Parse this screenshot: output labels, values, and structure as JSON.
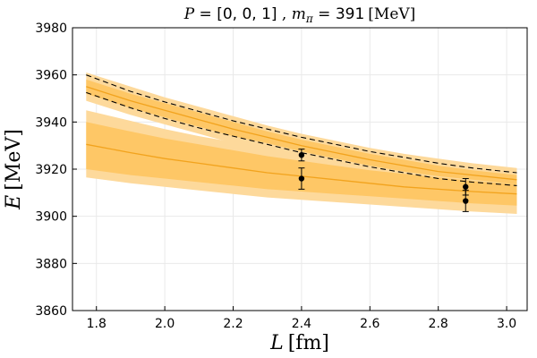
{
  "chart_data": {
    "type": "line",
    "title": {
      "p_symbol": "P",
      "eq": " = ",
      "p_value": "[0, 0, 1]",
      "sep": " , ",
      "m_symbol": "m",
      "m_sub": "π",
      "m_eq": " = ",
      "m_value": "391",
      "m_unit": "[MeV]"
    },
    "xlabel": {
      "symbol": "L",
      "unit": "[fm]"
    },
    "ylabel": {
      "symbol": "E",
      "unit": "[MeV]"
    },
    "xlim": [
      1.73,
      3.06
    ],
    "ylim": [
      3860,
      3980
    ],
    "xticks": [
      1.8,
      2.0,
      2.2,
      2.4,
      2.6,
      2.8,
      3.0
    ],
    "xtick_labels": [
      "1.8",
      "2.0",
      "2.2",
      "2.4",
      "2.6",
      "2.8",
      "3.0"
    ],
    "yticks": [
      3860,
      3880,
      3900,
      3920,
      3940,
      3960,
      3980
    ],
    "ytick_labels": [
      "3860",
      "3880",
      "3900",
      "3920",
      "3940",
      "3960",
      "3980"
    ],
    "grid": true,
    "colors": {
      "band_outer": "#fdd99b",
      "band_inner": "#fec766",
      "center_line": "#f2a31d",
      "dashed": "#000000",
      "points": "#000000"
    },
    "x": [
      1.77,
      1.9,
      2.0,
      2.1,
      2.2,
      2.3,
      2.4,
      2.5,
      2.6,
      2.7,
      2.8,
      2.9,
      3.03
    ],
    "series": [
      {
        "name": "upper level band",
        "center": [
          3955.0,
          3949.0,
          3945.0,
          3941.0,
          3937.0,
          3933.5,
          3930.0,
          3927.0,
          3924.0,
          3921.5,
          3919.0,
          3917.5,
          3915.5
        ],
        "inner_low": [
          3952.0,
          3946.0,
          3942.0,
          3938.0,
          3934.0,
          3931.0,
          3927.5,
          3924.5,
          3921.5,
          3919.0,
          3917.0,
          3915.5,
          3913.5
        ],
        "inner_high": [
          3958.0,
          3952.0,
          3948.0,
          3944.0,
          3940.0,
          3936.0,
          3932.5,
          3929.5,
          3926.5,
          3924.0,
          3921.5,
          3919.5,
          3917.5
        ],
        "outer_low": [
          3949.0,
          3943.0,
          3939.0,
          3935.0,
          3931.0,
          3927.5,
          3924.0,
          3921.0,
          3918.0,
          3916.0,
          3914.0,
          3912.5,
          3911.0
        ],
        "outer_high": [
          3961.0,
          3955.0,
          3950.5,
          3946.5,
          3942.5,
          3938.5,
          3935.0,
          3932.0,
          3929.0,
          3926.5,
          3924.5,
          3922.5,
          3920.5
        ]
      },
      {
        "name": "lower level band",
        "center": [
          3930.5,
          3927.0,
          3924.5,
          3922.5,
          3920.5,
          3918.5,
          3917.0,
          3915.5,
          3914.0,
          3912.5,
          3911.5,
          3910.5,
          3909.5
        ],
        "inner_low": [
          3920.0,
          3917.5,
          3916.0,
          3914.5,
          3913.0,
          3911.5,
          3910.5,
          3909.5,
          3908.5,
          3907.5,
          3906.5,
          3905.5,
          3904.5
        ],
        "inner_high": [
          3940.0,
          3936.0,
          3933.0,
          3930.5,
          3928.0,
          3925.5,
          3923.5,
          3921.5,
          3919.5,
          3918.0,
          3916.5,
          3915.0,
          3913.5
        ],
        "outer_low": [
          3916.5,
          3914.0,
          3912.5,
          3911.0,
          3909.5,
          3908.0,
          3907.0,
          3906.0,
          3905.0,
          3904.0,
          3903.0,
          3902.0,
          3901.0
        ],
        "outer_high": [
          3945.0,
          3940.5,
          3937.0,
          3934.0,
          3931.5,
          3929.0,
          3927.0,
          3925.0,
          3923.0,
          3921.0,
          3919.5,
          3918.0,
          3916.5
        ]
      }
    ],
    "dashed_lines": [
      {
        "name": "dashed upper",
        "values": [
          3960.0,
          3953.0,
          3948.5,
          3944.5,
          3940.5,
          3937.0,
          3933.5,
          3930.5,
          3927.5,
          3925.0,
          3922.5,
          3920.5,
          3918.5
        ]
      },
      {
        "name": "dashed lower",
        "values": [
          3952.5,
          3946.0,
          3941.5,
          3937.5,
          3934.0,
          3930.5,
          3927.0,
          3924.0,
          3921.0,
          3918.5,
          3916.0,
          3914.5,
          3913.0
        ]
      }
    ],
    "points": [
      {
        "x": 2.4,
        "y": 3926.0,
        "err": 2.5
      },
      {
        "x": 2.4,
        "y": 3916.0,
        "err": 4.5
      },
      {
        "x": 2.88,
        "y": 3912.5,
        "err": 3.5
      },
      {
        "x": 2.88,
        "y": 3906.5,
        "err": 4.5
      }
    ]
  }
}
